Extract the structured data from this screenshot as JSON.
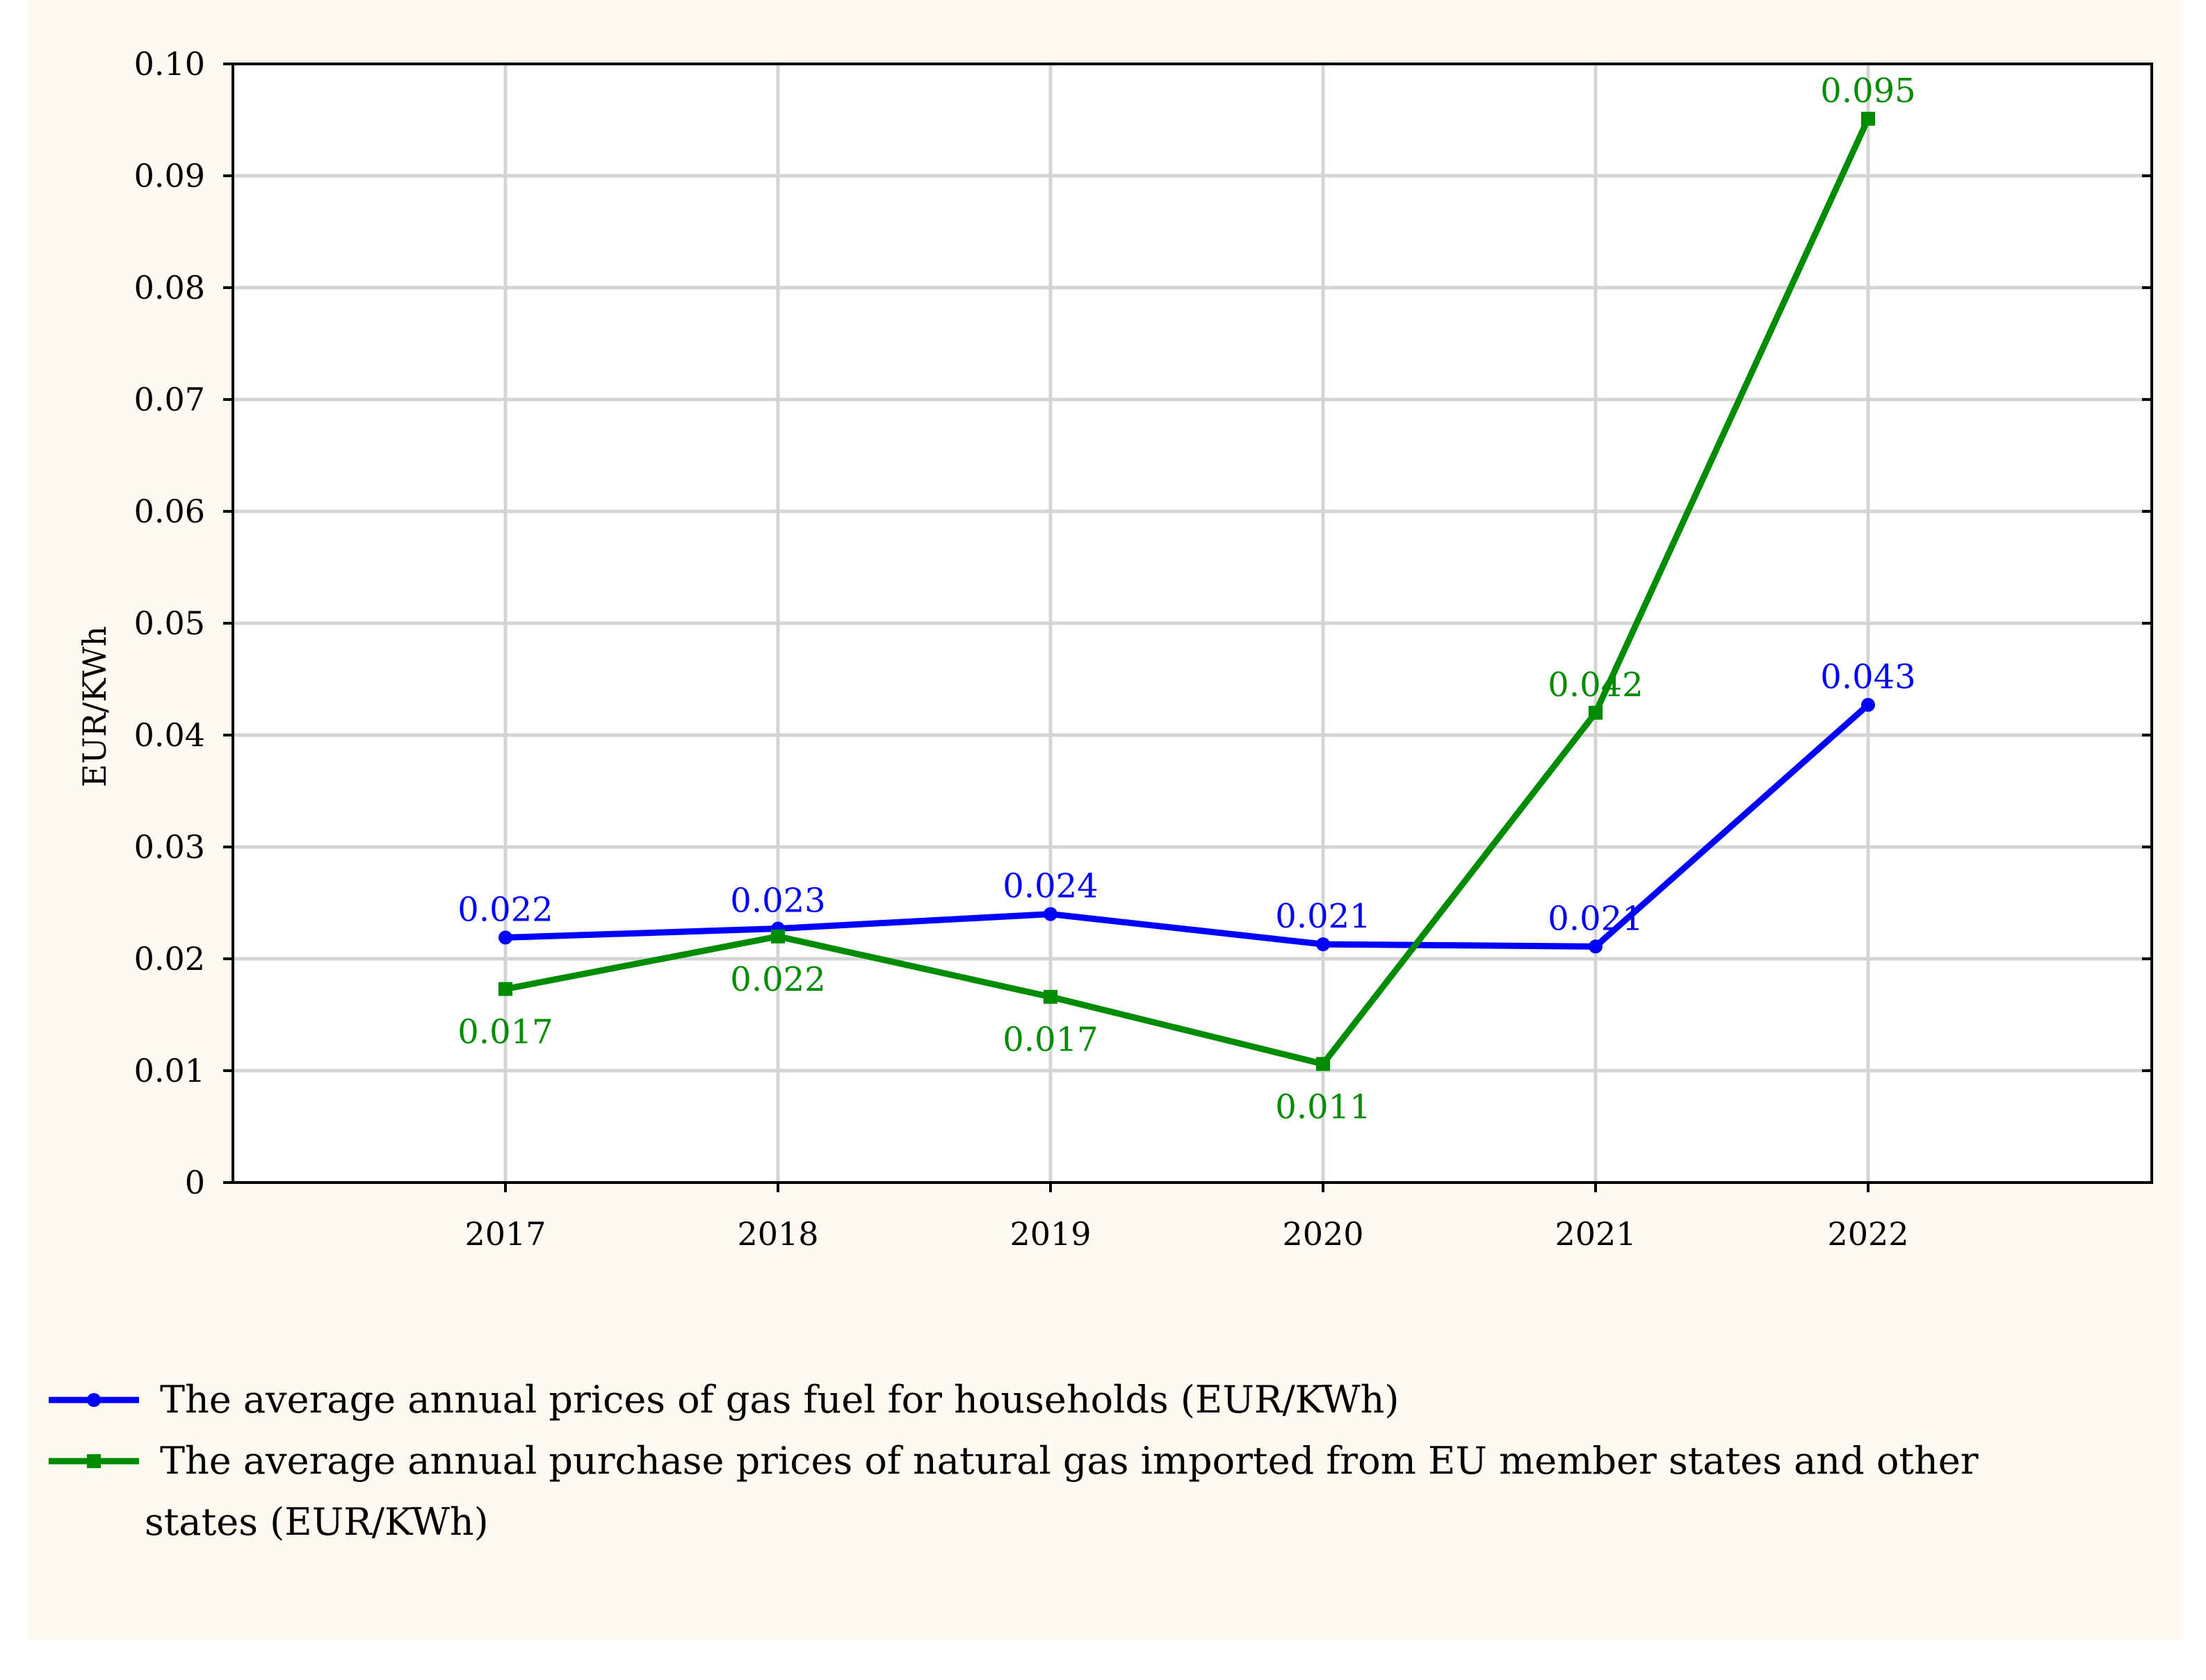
{
  "chart_data": {
    "type": "line",
    "title": "",
    "xlabel": "",
    "ylabel": "EUR/KWh",
    "categories": [
      "2017",
      "2018",
      "2019",
      "2020",
      "2021",
      "2022"
    ],
    "ylim": [
      0,
      0.1
    ],
    "yticks": [
      0,
      0.01,
      0.02,
      0.03,
      0.04,
      0.05,
      0.06,
      0.07,
      0.08,
      0.09,
      0.1
    ],
    "ytick_labels": [
      "0",
      "0.01",
      "0.02",
      "0.03",
      "0.04",
      "0.05",
      "0.06",
      "0.07",
      "0.08",
      "0.09",
      "0.10"
    ],
    "grid": true,
    "legend_position": "bottom",
    "series": [
      {
        "name": "The average annual prices of gas fuel for households (EUR/KWh)",
        "legend_lines": [
          "The average annual prices of gas fuel for households (EUR/KWh)"
        ],
        "color": "#0000ff",
        "marker": "circle",
        "values": [
          0.0219,
          0.0227,
          0.024,
          0.0213,
          0.0211,
          0.0427
        ],
        "data_labels": [
          "0.022",
          "0.023",
          "0.024",
          "0.021",
          "0.021",
          "0.043"
        ],
        "label_positions": [
          "above",
          "above",
          "above",
          "above",
          "above",
          "above"
        ]
      },
      {
        "name": "The average annual purchase prices of natural gas imported from EU member states and other states (EUR/KWh)",
        "legend_lines": [
          "The average annual purchase prices of natural gas imported from EU member states and other",
          "states (EUR/KWh)"
        ],
        "color": "#008c00",
        "marker": "square",
        "values": [
          0.0173,
          0.022,
          0.0166,
          0.0106,
          0.042,
          0.0951
        ],
        "data_labels": [
          "0.017",
          "0.022",
          "0.017",
          "0.011",
          "0.042",
          "0.095"
        ],
        "label_positions": [
          "below",
          "below",
          "below",
          "below",
          "above",
          "above"
        ]
      }
    ]
  }
}
